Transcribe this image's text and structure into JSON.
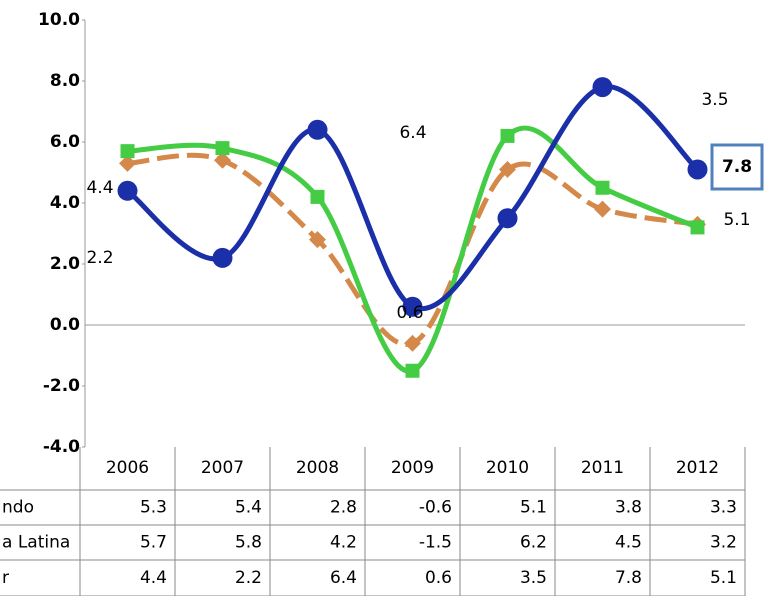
{
  "chart_data": {
    "type": "line",
    "categories": [
      "2006",
      "2007",
      "2008",
      "2009",
      "2010",
      "2011",
      "2012"
    ],
    "series": [
      {
        "name": "ndo",
        "color": "#d4894a",
        "values": [
          5.3,
          5.4,
          2.8,
          -0.6,
          5.1,
          3.8,
          3.3
        ]
      },
      {
        "name": "a Latina",
        "color": "#44cc44",
        "values": [
          5.7,
          5.8,
          4.2,
          -1.5,
          6.2,
          4.5,
          3.2
        ]
      },
      {
        "name": "r",
        "color": "#1a2fa8",
        "values": [
          4.4,
          2.2,
          6.4,
          0.6,
          3.5,
          7.8,
          5.1
        ]
      }
    ],
    "ylim": [
      -4,
      10
    ],
    "yticks": [
      {
        "value": -4,
        "label": "-4.0"
      },
      {
        "value": -2,
        "label": "-2.0"
      },
      {
        "value": 0,
        "label": "0.0"
      },
      {
        "value": 2,
        "label": "2.0"
      },
      {
        "value": 4,
        "label": "4.0"
      },
      {
        "value": 6,
        "label": "6.0"
      },
      {
        "value": 8,
        "label": "8.0"
      },
      {
        "value": 10,
        "label": "10.0"
      }
    ]
  }
}
